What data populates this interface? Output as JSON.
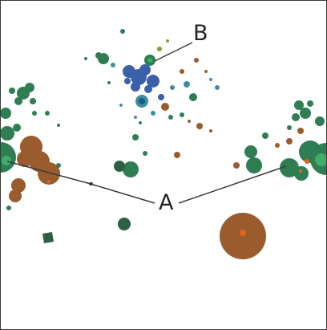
{
  "figure": {
    "callouts": {
      "a": "A",
      "b": "B"
    },
    "colors": {
      "background": "#ffffff",
      "green": "#2f7d52",
      "dark_green": "#2c5f45",
      "brown": "#9a5b2e",
      "orange": "#e0651f",
      "blue": "#3b5fa8",
      "teal": "#3d8fa0",
      "line": "#3a3a3a"
    }
  }
}
